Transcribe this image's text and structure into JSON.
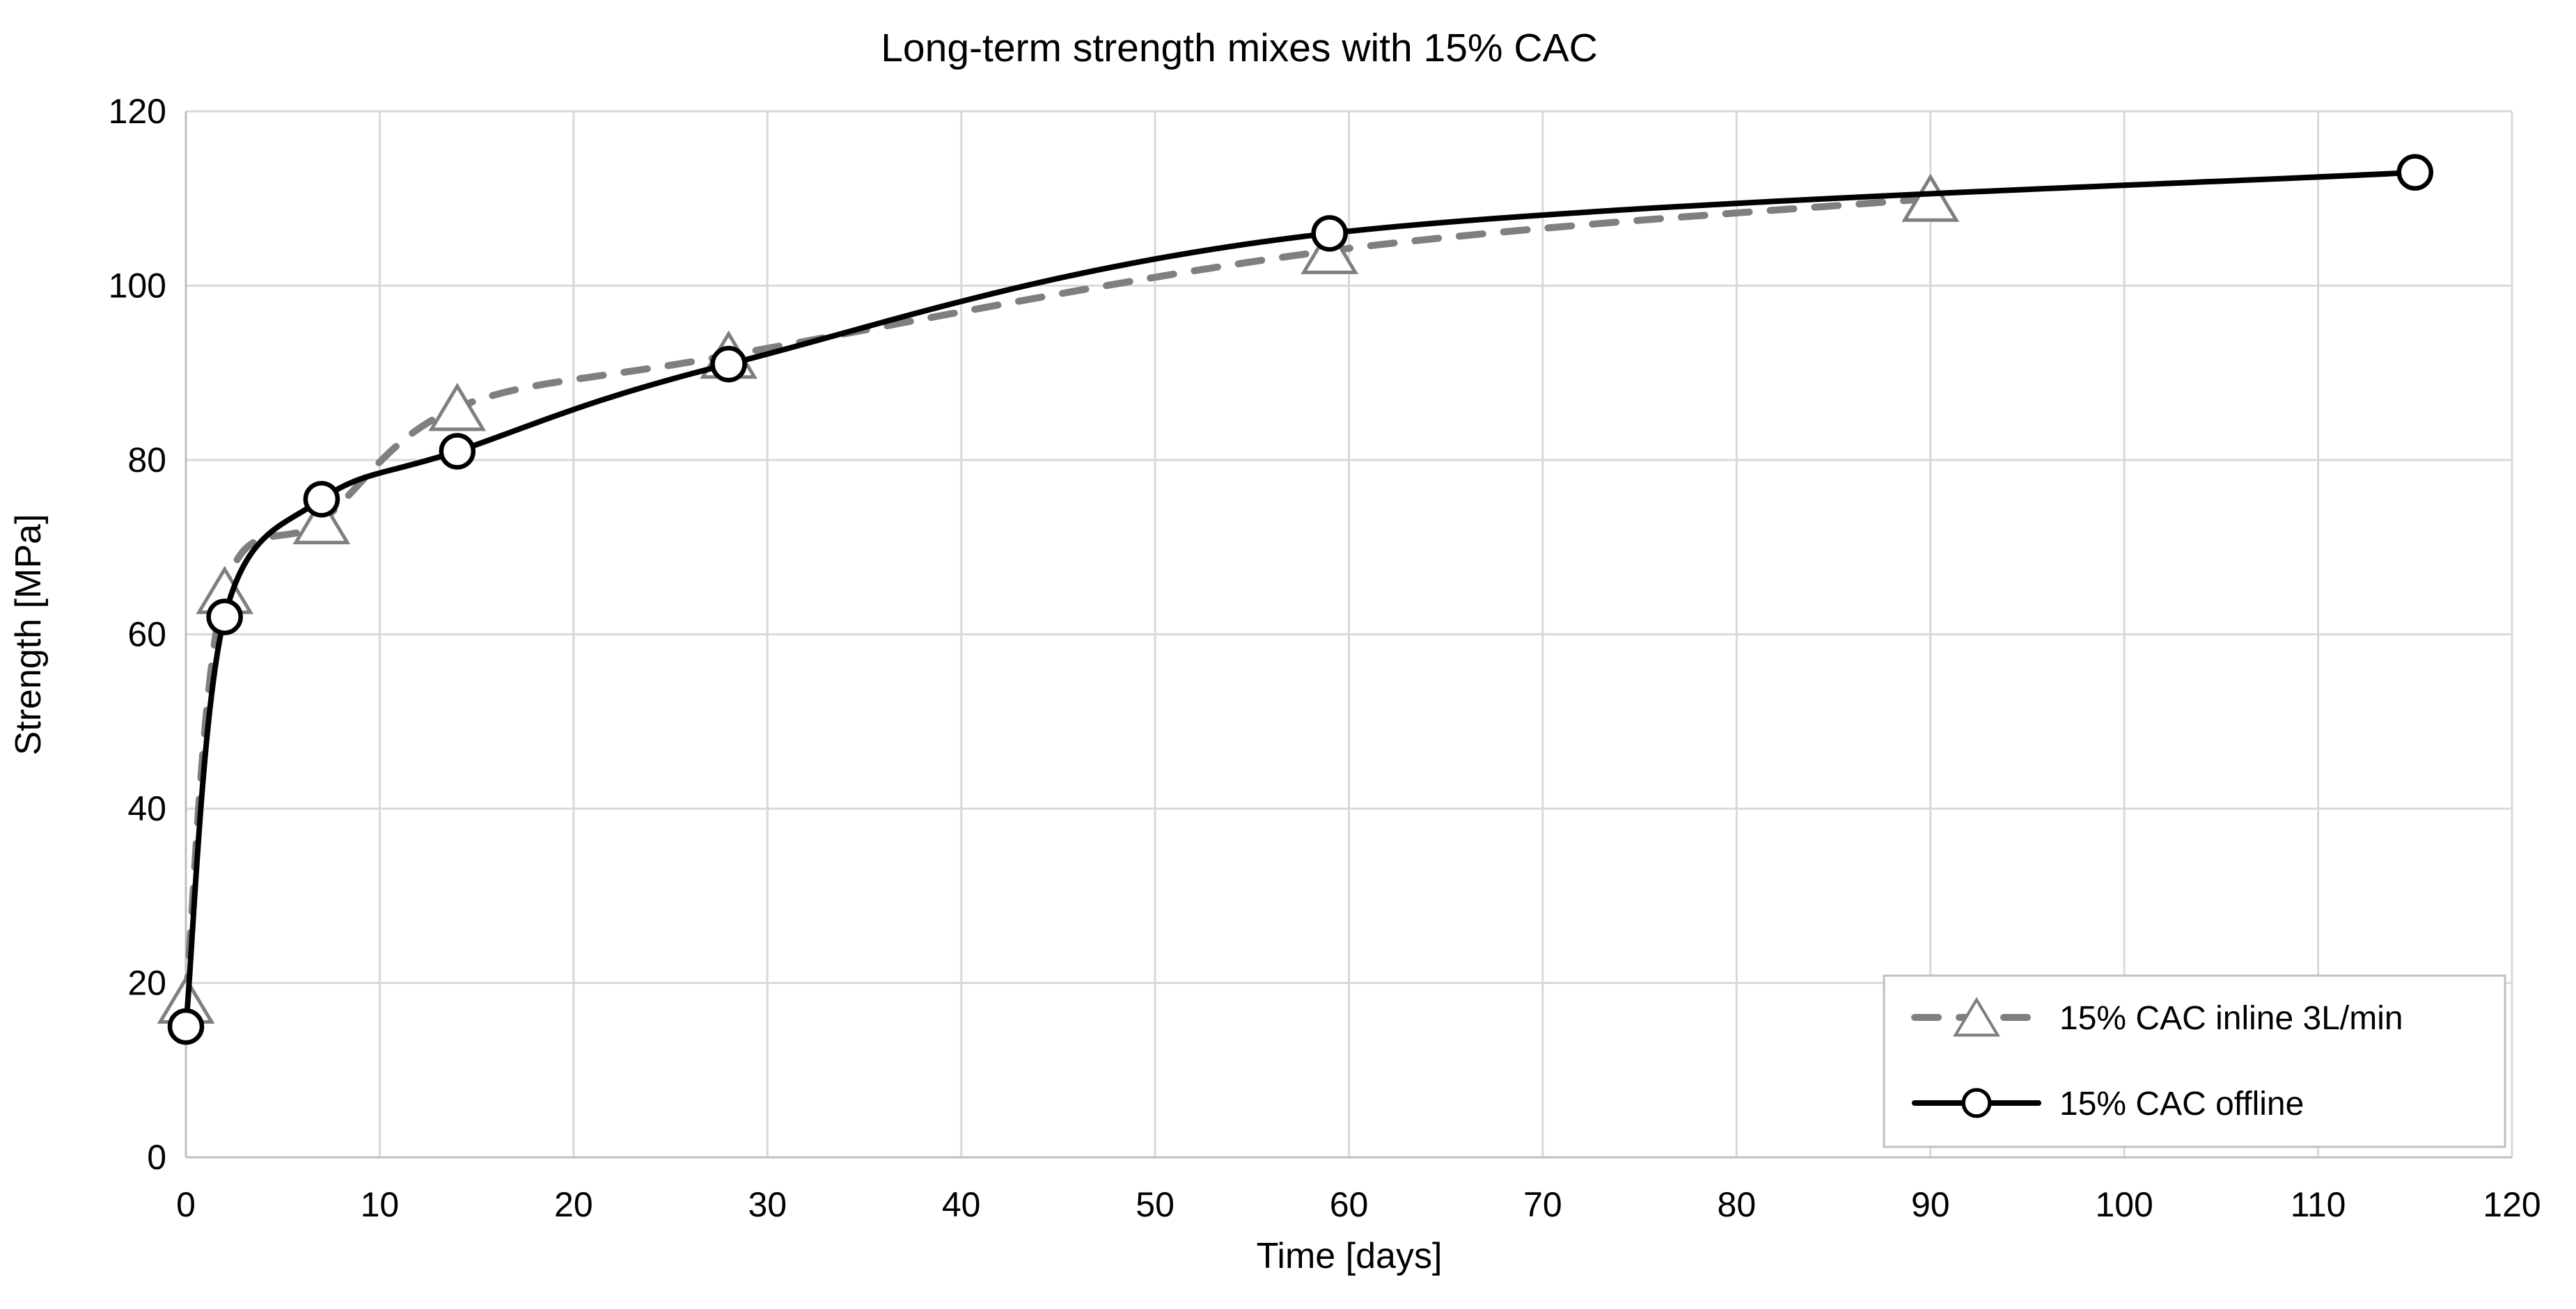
{
  "chart_data": {
    "type": "line",
    "title": "Long-term strength mixes with 15% CAC",
    "xlabel": "Time [days]",
    "ylabel": "Strength [MPa]",
    "xlim": [
      0,
      120
    ],
    "ylim": [
      0,
      120
    ],
    "x_ticks": [
      0,
      10,
      20,
      30,
      40,
      50,
      60,
      70,
      80,
      90,
      100,
      110,
      120
    ],
    "y_ticks": [
      0,
      20,
      40,
      60,
      80,
      100,
      120
    ],
    "grid": true,
    "legend_position": "bottom-right",
    "series": [
      {
        "name": "15% CAC inline 3L/min",
        "marker": "triangle",
        "line_style": "dashed",
        "color": "#7F7F7F",
        "x": [
          0,
          2,
          7,
          14,
          28,
          59,
          90
        ],
        "y": [
          18,
          65,
          73,
          86,
          92,
          104,
          110
        ]
      },
      {
        "name": "15% CAC offline",
        "marker": "circle",
        "line_style": "solid",
        "color": "#000000",
        "x": [
          0,
          2,
          7,
          14,
          28,
          59,
          115
        ],
        "y": [
          15,
          62,
          75.5,
          81,
          91,
          106,
          113
        ]
      }
    ],
    "colors": {
      "gridline": "#D9D9D9",
      "axis": "#BFBFBF",
      "text": "#000000",
      "background": "#FFFFFF"
    }
  }
}
